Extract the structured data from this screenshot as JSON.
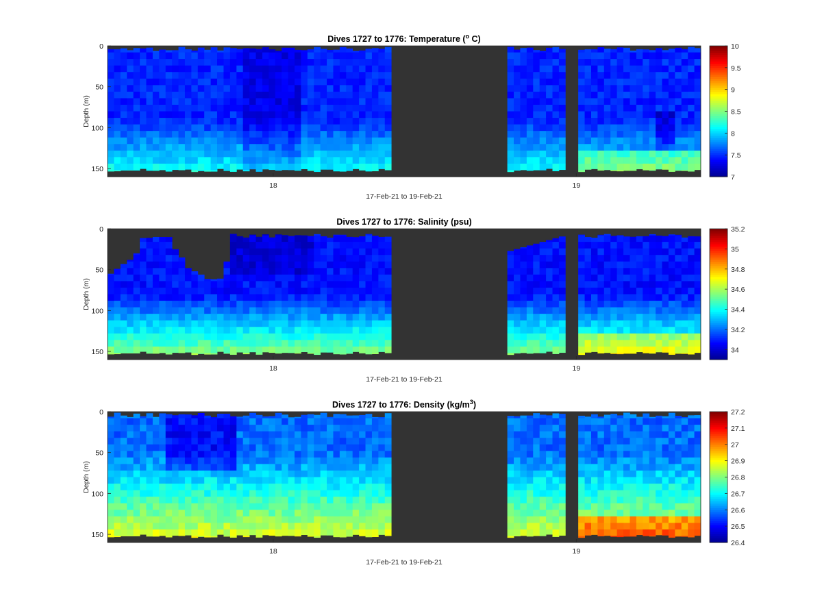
{
  "colors": {
    "no_data": "#333333",
    "axis": "#262626",
    "colormap": [
      "#00008f",
      "#0000ff",
      "#0080ff",
      "#00ffff",
      "#80ff80",
      "#ffff00",
      "#ff8000",
      "#ff0000",
      "#800000"
    ]
  },
  "chart_data": [
    {
      "type": "heatmap",
      "title_main": "Dives 1727 to 1776: Temperature (",
      "title_sup": "o",
      "title_tail": " C)",
      "variable": "temperature",
      "xlabel": "17-Feb-21 to 19-Feb-21",
      "ylabel": "Depth (m)",
      "xticks": [
        "18",
        "19"
      ],
      "yticks": [
        "0",
        "50",
        "100",
        "150"
      ],
      "ylim": [
        0,
        160
      ],
      "colorbar": {
        "min": 7,
        "max": 10,
        "ticks": [
          "7",
          "7.5",
          "8",
          "8.5",
          "9",
          "9.5",
          "10"
        ]
      }
    },
    {
      "type": "heatmap",
      "title_main": "Dives 1727 to 1776: Salinity (psu)",
      "title_sup": "",
      "title_tail": "",
      "variable": "salinity",
      "xlabel": "17-Feb-21 to 19-Feb-21",
      "ylabel": "Depth (m)",
      "xticks": [
        "18",
        "19"
      ],
      "yticks": [
        "0",
        "50",
        "100",
        "150"
      ],
      "ylim": [
        0,
        160
      ],
      "colorbar": {
        "min": 33.9,
        "max": 35.2,
        "ticks": [
          "34",
          "34.2",
          "34.4",
          "34.6",
          "34.8",
          "35",
          "35.2"
        ]
      }
    },
    {
      "type": "heatmap",
      "title_main": "Dives 1727 to 1776: Density (kg/m",
      "title_sup": "3",
      "title_tail": ")",
      "variable": "density",
      "xlabel": "17-Feb-21 to 19-Feb-21",
      "ylabel": "Depth (m)",
      "xticks": [
        "18",
        "19"
      ],
      "yticks": [
        "0",
        "50",
        "100",
        "150"
      ],
      "ylim": [
        0,
        160
      ],
      "colorbar": {
        "min": 26.4,
        "max": 27.2,
        "ticks": [
          "26.4",
          "26.5",
          "26.6",
          "26.7",
          "26.8",
          "26.9",
          "27",
          "27.1",
          "27.2"
        ]
      }
    }
  ]
}
